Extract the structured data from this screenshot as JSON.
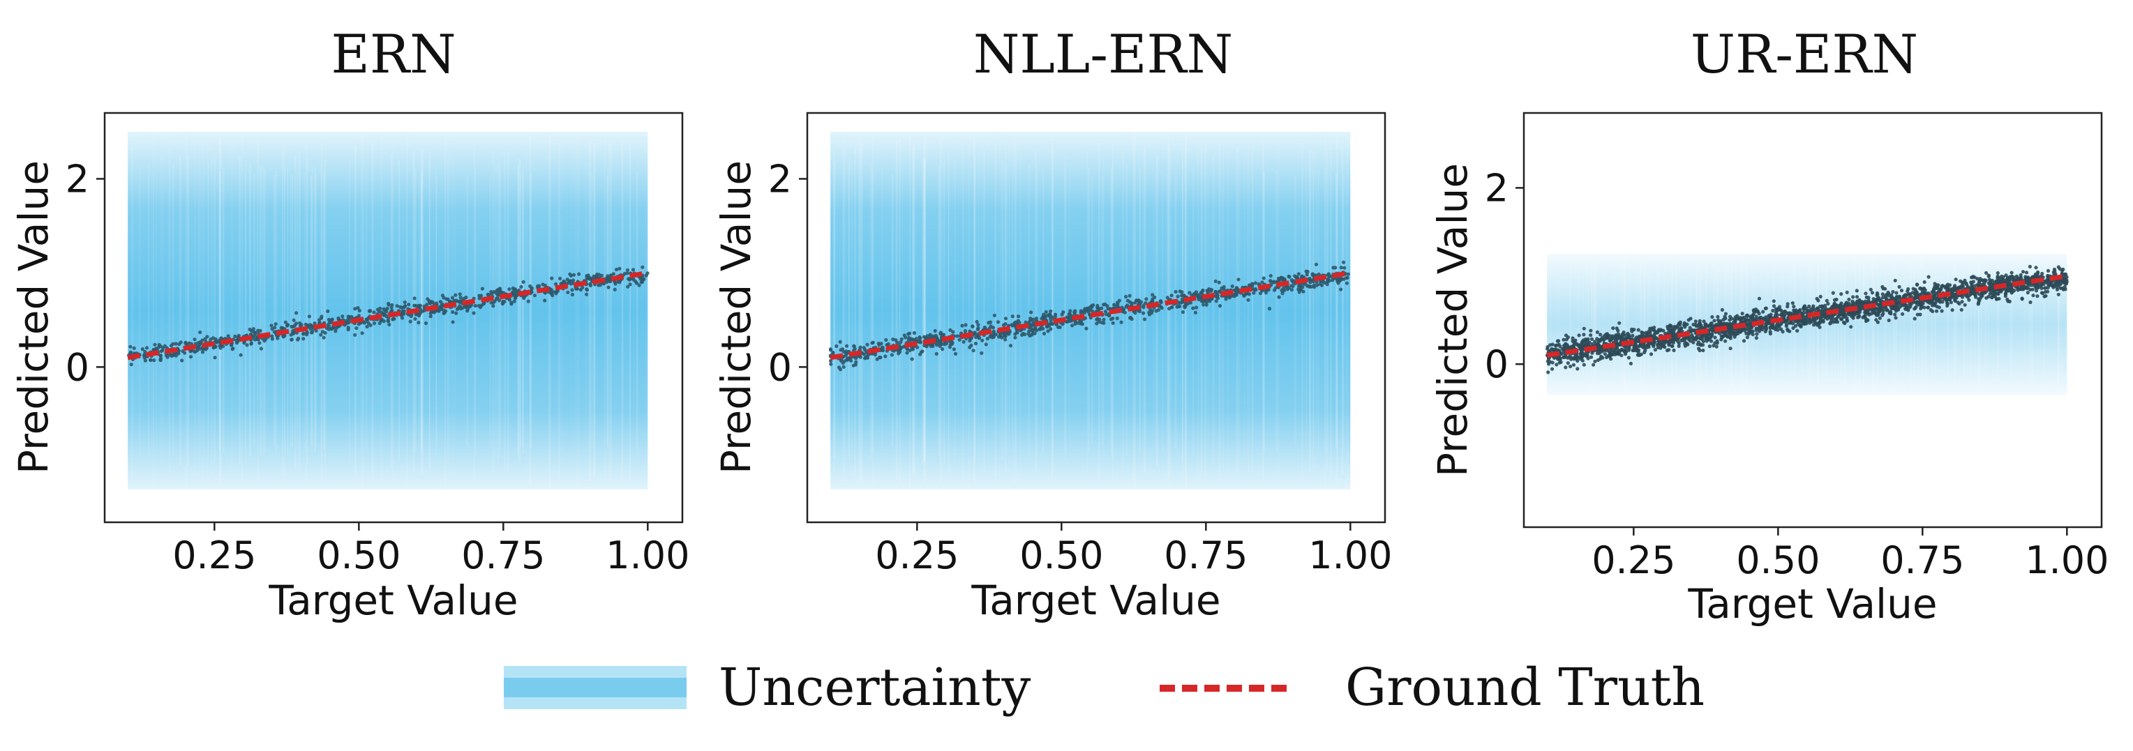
{
  "chart_data": [
    {
      "type": "scatter",
      "title": "ERN",
      "xlabel": "Target Value",
      "ylabel": "Predicted Value",
      "xlim": [
        0.06,
        1.06
      ],
      "ylim": [
        -1.65,
        2.7
      ],
      "xticks": [
        0.25,
        0.5,
        0.75,
        1.0
      ],
      "xtick_labels": [
        "0.25",
        "0.50",
        "0.75",
        "1.00"
      ],
      "yticks": [
        0,
        2
      ],
      "ytick_labels": [
        "0",
        "2"
      ],
      "uncertainty_band": {
        "x_range": [
          0.1,
          1.0
        ],
        "lower": -1.3,
        "upper": 2.5
      },
      "ground_truth": {
        "x": [
          0.1,
          1.0
        ],
        "y": [
          0.1,
          1.0
        ]
      },
      "points": {
        "count": 900,
        "noise_sd": 0.055,
        "color": "#2e5a6e"
      }
    },
    {
      "type": "scatter",
      "title": "NLL-ERN",
      "xlabel": "Target Value",
      "ylabel": "Predicted Value",
      "xlim": [
        0.06,
        1.06
      ],
      "ylim": [
        -1.65,
        2.7
      ],
      "xticks": [
        0.25,
        0.5,
        0.75,
        1.0
      ],
      "xtick_labels": [
        "0.25",
        "0.50",
        "0.75",
        "1.00"
      ],
      "yticks": [
        0,
        2
      ],
      "ytick_labels": [
        "0",
        "2"
      ],
      "uncertainty_band": {
        "x_range": [
          0.1,
          1.0
        ],
        "lower": -1.3,
        "upper": 2.5
      },
      "ground_truth": {
        "x": [
          0.1,
          1.0
        ],
        "y": [
          0.1,
          1.0
        ]
      },
      "points": {
        "count": 1100,
        "noise_sd": 0.06,
        "color": "#2e5a6e"
      }
    },
    {
      "type": "scatter",
      "title": "UR-ERN",
      "xlabel": "Target Value",
      "ylabel": "Predicted Value",
      "xlim": [
        0.06,
        1.06
      ],
      "ylim": [
        -1.85,
        2.85
      ],
      "xticks": [
        0.25,
        0.5,
        0.75,
        1.0
      ],
      "xtick_labels": [
        "0.25",
        "0.50",
        "0.75",
        "1.00"
      ],
      "yticks": [
        0,
        2
      ],
      "ytick_labels": [
        "0",
        "2"
      ],
      "uncertainty_band": {
        "x_range": [
          0.1,
          1.0
        ],
        "lower": -0.35,
        "upper": 1.25
      },
      "ground_truth": {
        "x": [
          0.1,
          1.0
        ],
        "y": [
          0.1,
          1.0
        ]
      },
      "points": {
        "count": 2600,
        "noise_sd": 0.08,
        "color": "#2e4a58"
      }
    }
  ],
  "legend": {
    "placement": "bottom-center",
    "items": [
      {
        "label": "Uncertainty",
        "color": "#5bc0eb"
      },
      {
        "label": "Ground Truth",
        "color": "#d62728"
      }
    ]
  },
  "colors": {
    "uncertainty": "#5bc0eb",
    "ground_truth": "#d62728"
  }
}
